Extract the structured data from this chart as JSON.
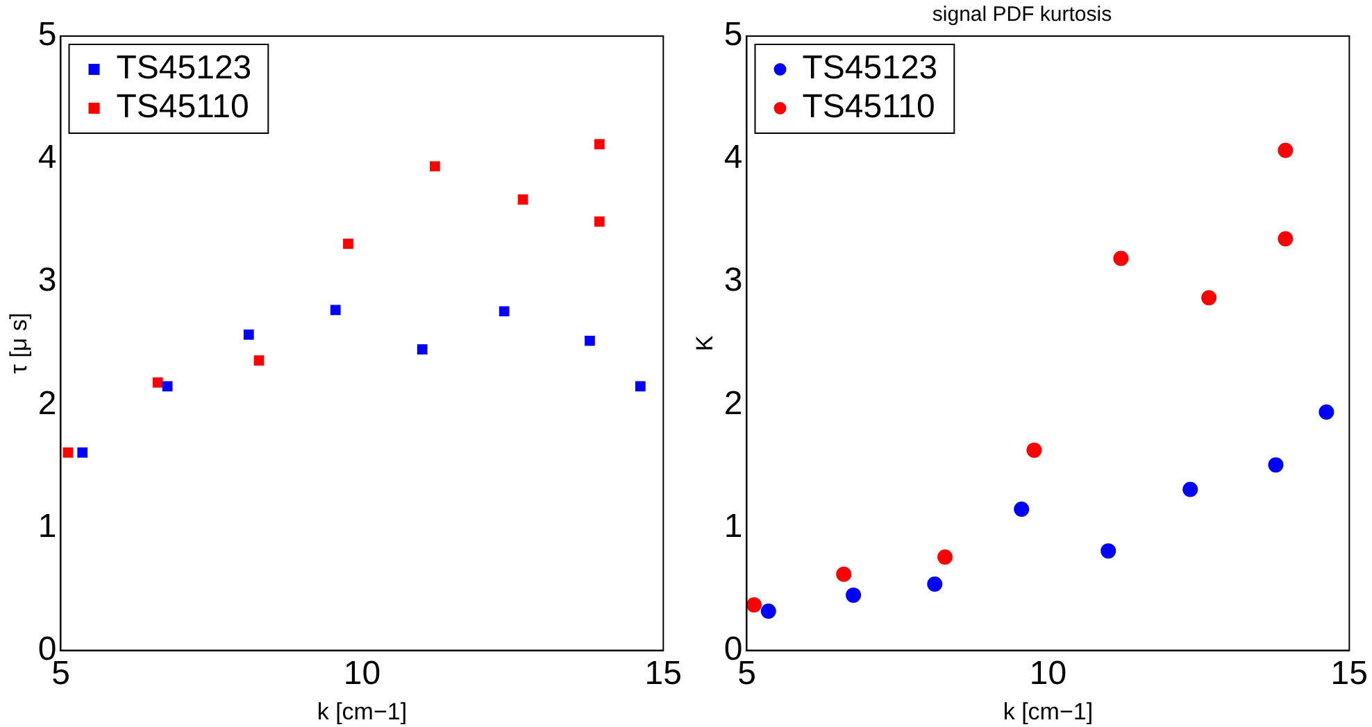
{
  "chart_data": [
    {
      "type": "scatter",
      "xlabel": "k [cm−1]",
      "ylabel": "τ [μ s]",
      "xlim": [
        5,
        15
      ],
      "xticks": [
        5,
        10,
        15
      ],
      "ylim": [
        0,
        5
      ],
      "yticks": [
        0,
        1,
        2,
        3,
        4,
        5
      ],
      "marker": "square",
      "legend": "top left",
      "grid": false,
      "series": [
        {
          "name": "TS45123",
          "color": "#0000ff",
          "x": [
            5.36,
            6.77,
            8.12,
            9.56,
            11.0,
            12.36,
            13.78,
            14.62
          ],
          "values": [
            1.61,
            2.15,
            2.57,
            2.77,
            2.45,
            2.76,
            2.52,
            2.15
          ]
        },
        {
          "name": "TS45110",
          "color": "#ff0000",
          "x": [
            5.12,
            6.61,
            8.29,
            9.77,
            11.21,
            12.67,
            13.94,
            13.94
          ],
          "values": [
            1.61,
            2.18,
            2.36,
            3.31,
            3.94,
            3.67,
            4.12,
            3.49
          ]
        }
      ]
    },
    {
      "type": "scatter",
      "title": "signal PDF kurtosis",
      "xlabel": "k [cm−1]",
      "ylabel": "K",
      "xlim": [
        5,
        15
      ],
      "xticks": [
        5,
        10,
        15
      ],
      "ylim": [
        0,
        5
      ],
      "yticks": [
        0,
        1,
        2,
        3,
        4,
        5
      ],
      "marker": "circle",
      "legend": "top left",
      "grid": false,
      "series": [
        {
          "name": "TS45123",
          "color": "#0000ff",
          "x": [
            5.36,
            6.77,
            8.12,
            9.56,
            11.0,
            12.36,
            13.78,
            14.62
          ],
          "values": [
            0.32,
            0.45,
            0.54,
            1.15,
            0.81,
            1.31,
            1.51,
            1.94
          ]
        },
        {
          "name": "TS45110",
          "color": "#ff0000",
          "x": [
            5.12,
            6.61,
            8.29,
            9.77,
            11.21,
            12.67,
            13.94,
            13.94
          ],
          "values": [
            0.37,
            0.62,
            0.76,
            1.63,
            3.19,
            2.87,
            3.35,
            4.07
          ]
        }
      ]
    }
  ]
}
